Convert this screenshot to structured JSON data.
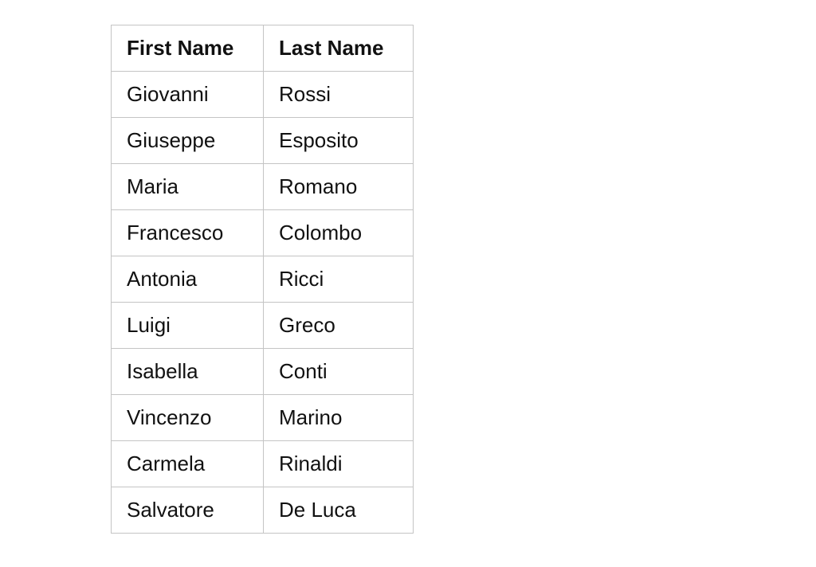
{
  "table": {
    "headers": [
      "First Name",
      "Last Name"
    ],
    "rows": [
      [
        "Giovanni",
        "Rossi"
      ],
      [
        "Giuseppe",
        "Esposito"
      ],
      [
        "Maria",
        "Romano"
      ],
      [
        "Francesco",
        "Colombo"
      ],
      [
        "Antonia",
        "Ricci"
      ],
      [
        "Luigi",
        "Greco"
      ],
      [
        "Isabella",
        "Conti"
      ],
      [
        "Vincenzo",
        "Marino"
      ],
      [
        "Carmela",
        "Rinaldi"
      ],
      [
        "Salvatore",
        "De Luca"
      ]
    ]
  }
}
